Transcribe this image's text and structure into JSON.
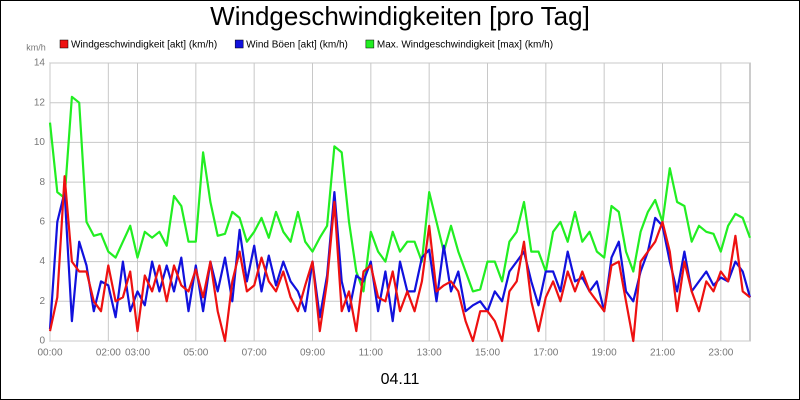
{
  "chart_data": {
    "type": "line",
    "title": "Windgeschwindigkeiten [pro Tag]",
    "y_unit": "km/h",
    "xlabel": "04.11",
    "xlim": [
      0,
      24
    ],
    "xticks": [
      {
        "value": 0,
        "label": "00:00"
      },
      {
        "value": 2,
        "label": "02:00"
      },
      {
        "value": 3,
        "label": "03:00"
      },
      {
        "value": 5,
        "label": "05:00"
      },
      {
        "value": 7,
        "label": "07:00"
      },
      {
        "value": 9,
        "label": "09:00"
      },
      {
        "value": 11,
        "label": "11:00"
      },
      {
        "value": 13,
        "label": "13:00"
      },
      {
        "value": 15,
        "label": "15:00"
      },
      {
        "value": 17,
        "label": "17:00"
      },
      {
        "value": 19,
        "label": "19:00"
      },
      {
        "value": 21,
        "label": "21:00"
      },
      {
        "value": 23,
        "label": "23:00"
      }
    ],
    "ylim": [
      0,
      14
    ],
    "yticks": [
      0,
      2,
      4,
      6,
      8,
      10,
      12,
      14
    ],
    "grid": true,
    "x": [
      0,
      0.25,
      0.5,
      0.75,
      1,
      1.25,
      1.5,
      1.75,
      2,
      2.25,
      2.5,
      2.75,
      3,
      3.25,
      3.5,
      3.75,
      4,
      4.25,
      4.5,
      4.75,
      5,
      5.25,
      5.5,
      5.75,
      6,
      6.25,
      6.5,
      6.75,
      7,
      7.25,
      7.5,
      7.75,
      8,
      8.25,
      8.5,
      8.75,
      9,
      9.25,
      9.5,
      9.75,
      10,
      10.25,
      10.5,
      10.75,
      11,
      11.25,
      11.5,
      11.75,
      12,
      12.25,
      12.5,
      12.75,
      13,
      13.25,
      13.5,
      13.75,
      14,
      14.25,
      14.5,
      14.75,
      15,
      15.25,
      15.5,
      15.75,
      16,
      16.25,
      16.5,
      16.75,
      17,
      17.25,
      17.5,
      17.75,
      18,
      18.25,
      18.5,
      18.75,
      19,
      19.25,
      19.5,
      19.75,
      20,
      20.25,
      20.5,
      20.75,
      21,
      21.25,
      21.5,
      21.75,
      22,
      22.25,
      22.5,
      22.75,
      23,
      23.25,
      23.5,
      23.75,
      24
    ],
    "series": [
      {
        "name": "Windgeschwindigkeit [akt] (km/h)",
        "color": "#ee1111",
        "values": [
          0.5,
          2.2,
          8.3,
          4,
          3.5,
          3.5,
          2,
          1.5,
          3.8,
          2,
          2.2,
          3.5,
          0.5,
          3.3,
          2.5,
          3.8,
          2,
          3.8,
          2.8,
          2.5,
          3.6,
          2.2,
          4,
          1.5,
          0,
          3,
          4.5,
          2.5,
          2.8,
          4.2,
          3,
          2.5,
          3.5,
          2.2,
          1.5,
          2.8,
          4,
          0.5,
          3,
          7,
          1.5,
          2.5,
          0.5,
          3.5,
          3.8,
          2.2,
          2,
          3.5,
          1.5,
          2.5,
          1.5,
          3,
          5.8,
          2.5,
          2.8,
          3,
          2.5,
          1,
          0,
          1.5,
          1.5,
          1,
          0,
          2.5,
          3,
          5,
          2,
          0.5,
          2.2,
          3,
          2,
          3.5,
          2.5,
          3.5,
          2.5,
          2,
          1.5,
          3.8,
          4,
          2,
          0,
          4,
          4.5,
          5,
          6,
          4.5,
          1.5,
          4,
          2.5,
          1.5,
          3,
          2.5,
          3.5,
          3,
          5.3,
          2.5,
          2.2
        ]
      },
      {
        "name": "Wind Böen [akt] (km/h)",
        "color": "#1111dd",
        "values": [
          0.6,
          6,
          7.5,
          1,
          5,
          3.8,
          1.5,
          3,
          2.8,
          1.2,
          4,
          1.5,
          2.5,
          1.8,
          4,
          2.5,
          3.8,
          2.5,
          4.2,
          1.5,
          3.8,
          1.5,
          4,
          2.5,
          4.2,
          2,
          5.6,
          3,
          4.8,
          2.5,
          4.3,
          2.8,
          4,
          3,
          2.5,
          1.5,
          4,
          1.2,
          3.3,
          7.5,
          3,
          1.5,
          3.3,
          3,
          4,
          1.5,
          3.5,
          1,
          4,
          2.5,
          2.5,
          4.2,
          4.6,
          2,
          4.8,
          2.5,
          3.5,
          1.5,
          1.8,
          2,
          1.5,
          2.5,
          2,
          3.5,
          4,
          4.5,
          3,
          1.8,
          3.5,
          3.5,
          2.5,
          4.5,
          3,
          3.2,
          2.5,
          3,
          1.5,
          4.2,
          5,
          2.5,
          2,
          3.5,
          4.5,
          6.2,
          5.8,
          4,
          2.5,
          4.5,
          2.5,
          3,
          3.5,
          2.8,
          3.2,
          3,
          4,
          3.5,
          2.2
        ]
      },
      {
        "name": "Max. Windgeschwindigkeit [max] (km/h)",
        "color": "#22ee22",
        "values": [
          11,
          7.5,
          7.2,
          12.3,
          12,
          6,
          5.3,
          5.4,
          4.5,
          4.2,
          5,
          5.8,
          4.2,
          5.5,
          5.2,
          5.5,
          4.8,
          7.3,
          6.8,
          5,
          5,
          9.5,
          7,
          5.3,
          5.4,
          6.5,
          6.2,
          5,
          5.5,
          6.2,
          5.2,
          6.5,
          5.5,
          5,
          6.5,
          5,
          4.5,
          5.2,
          5.8,
          9.8,
          9.5,
          6,
          3.5,
          2.5,
          5.5,
          4.5,
          4,
          5.5,
          4.5,
          5,
          5,
          4,
          7.5,
          6,
          4.5,
          5.8,
          4.5,
          3.5,
          2.5,
          2.6,
          4,
          4,
          3,
          5,
          5.5,
          7,
          4.5,
          4.5,
          3.5,
          5.5,
          6,
          5,
          6.5,
          5,
          5.5,
          4.5,
          4.2,
          6.8,
          6.5,
          4.5,
          3.5,
          5.5,
          6.5,
          7.1,
          6,
          8.7,
          7,
          6.8,
          5,
          5.8,
          5.5,
          5.4,
          4.5,
          5.8,
          6.4,
          6.2,
          5.2
        ]
      }
    ]
  }
}
